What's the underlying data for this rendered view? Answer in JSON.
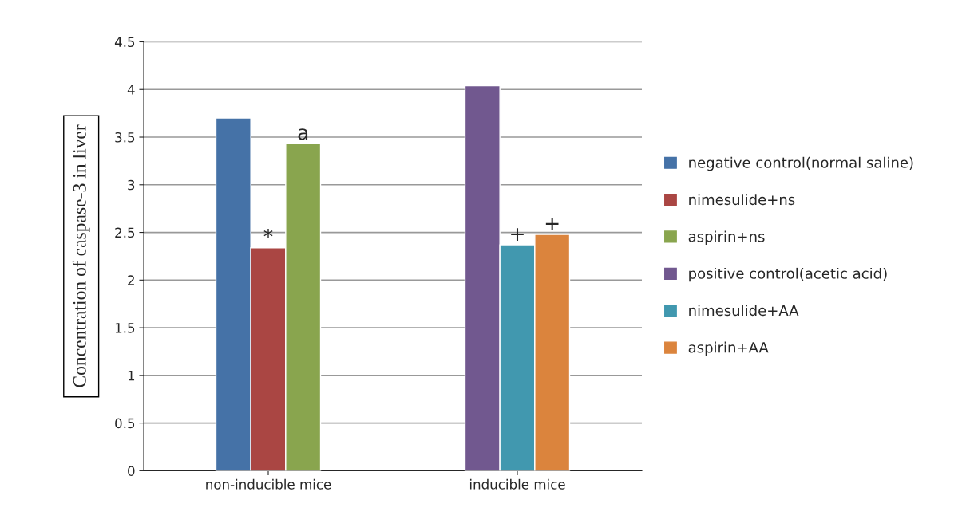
{
  "chart_data": {
    "type": "bar",
    "ylabel": "Concentration of caspase-3 in liver",
    "categories": [
      "non-inducible mice",
      "inducible mice"
    ],
    "series": [
      {
        "name": "negative control(normal saline)",
        "color": "#4572a7",
        "values": [
          3.7,
          null
        ]
      },
      {
        "name": "nimesulide+ns",
        "color": "#aa4643",
        "values": [
          2.34,
          null
        ]
      },
      {
        "name": "aspirin+ns",
        "color": "#89a54e",
        "values": [
          3.43,
          null
        ]
      },
      {
        "name": "positive control(acetic acid)",
        "color": "#71588f",
        "values": [
          null,
          4.04
        ]
      },
      {
        "name": "nimesulide+AA",
        "color": "#4198af",
        "values": [
          null,
          2.37
        ]
      },
      {
        "name": "aspirin+AA",
        "color": "#db843d",
        "values": [
          null,
          2.48
        ]
      }
    ],
    "annotations": [
      {
        "text": "*",
        "y": 2.34
      },
      {
        "text": "a",
        "y": 3.43
      },
      {
        "text": "+",
        "y": 2.37
      },
      {
        "text": "+",
        "y": 2.48
      }
    ],
    "ylim": [
      0,
      4.5
    ],
    "yticks": [
      0,
      0.5,
      1,
      1.5,
      2,
      2.5,
      3,
      3.5,
      4,
      4.5
    ],
    "grid": "y",
    "legend": "right"
  }
}
